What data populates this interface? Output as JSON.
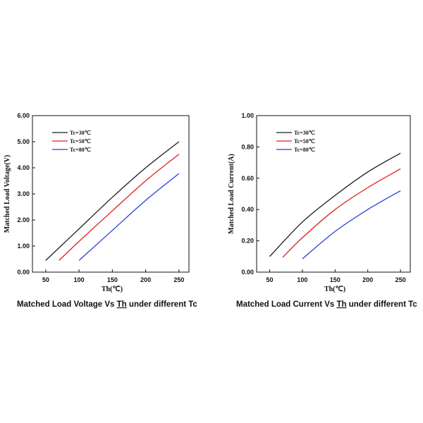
{
  "chart_data": [
    {
      "type": "line",
      "title": "",
      "caption_parts": [
        "Matched Load Voltage Vs ",
        "Th",
        " under different Tc"
      ],
      "xlabel": "Th(℃)",
      "ylabel": "Matched Load Voltage(V)",
      "xlim": [
        30,
        265
      ],
      "ylim": [
        0,
        6
      ],
      "xticks": [
        50,
        100,
        150,
        200,
        250
      ],
      "yticks": [
        "0.00",
        "1.00",
        "2.00",
        "3.00",
        "4.00",
        "5.00",
        "6.00"
      ],
      "legend_position": "top-left",
      "series": [
        {
          "name": "Tc=30℃",
          "color": "#1a1a1a",
          "x": [
            50,
            100,
            150,
            200,
            250
          ],
          "y": [
            0.45,
            1.66,
            2.87,
            4.0,
            5.0
          ]
        },
        {
          "name": "Tc=50℃",
          "color": "#e0201b",
          "x": [
            70,
            100,
            150,
            200,
            250
          ],
          "y": [
            0.45,
            1.18,
            2.35,
            3.5,
            4.52
          ]
        },
        {
          "name": "Tc=80℃",
          "color": "#2a3fd8",
          "x": [
            100,
            150,
            200,
            250
          ],
          "y": [
            0.45,
            1.6,
            2.75,
            3.78
          ]
        }
      ]
    },
    {
      "type": "line",
      "title": "",
      "caption_parts": [
        "Matched Load Current Vs ",
        "Th",
        " under different Tc"
      ],
      "xlabel": "Th(℃)",
      "ylabel": "Matched Load Current(A)",
      "xlim": [
        30,
        265
      ],
      "ylim": [
        0,
        1
      ],
      "xticks": [
        50,
        100,
        150,
        200,
        250
      ],
      "yticks": [
        "0.00",
        "0.20",
        "0.40",
        "0.60",
        "0.80",
        "1.00"
      ],
      "legend_position": "top-left",
      "series": [
        {
          "name": "Tc=30℃",
          "color": "#1a1a1a",
          "x": [
            50,
            100,
            150,
            200,
            250
          ],
          "y": [
            0.1,
            0.32,
            0.49,
            0.64,
            0.76
          ]
        },
        {
          "name": "Tc=50℃",
          "color": "#e0201b",
          "x": [
            70,
            100,
            150,
            200,
            250
          ],
          "y": [
            0.095,
            0.22,
            0.4,
            0.54,
            0.66
          ]
        },
        {
          "name": "Tc=80℃",
          "color": "#2a3fd8",
          "x": [
            100,
            150,
            200,
            250
          ],
          "y": [
            0.085,
            0.26,
            0.4,
            0.52
          ]
        }
      ]
    }
  ]
}
